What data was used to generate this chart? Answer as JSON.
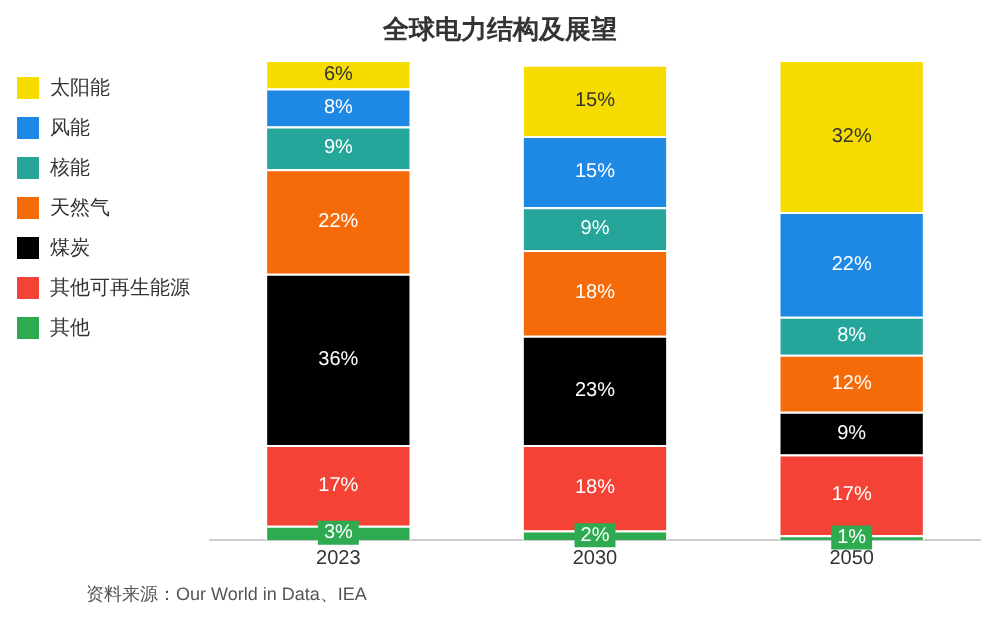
{
  "chart_data": {
    "type": "bar",
    "title": "全球电力结构及展望",
    "categories": [
      "2023",
      "2030",
      "2050"
    ],
    "stacked": true,
    "legend": "left",
    "grid": false,
    "series": [
      {
        "name": "其他",
        "color": "#2eaa50",
        "values": [
          3,
          2,
          1
        ],
        "value_labels": [
          "3%",
          "2%",
          "1%"
        ]
      },
      {
        "name": "其他可再生能源",
        "color": "#f44336",
        "values": [
          17,
          18,
          17
        ],
        "value_labels": [
          "17%",
          "18%",
          "17%"
        ]
      },
      {
        "name": "煤炭",
        "color": "#000000",
        "values": [
          36,
          23,
          9
        ],
        "value_labels": [
          "36%",
          "23%",
          "9%"
        ]
      },
      {
        "name": "天然气",
        "color": "#f56b0a",
        "values": [
          22,
          18,
          12
        ],
        "value_labels": [
          "22%",
          "18%",
          "12%"
        ]
      },
      {
        "name": "核能",
        "color": "#26a69a",
        "values": [
          9,
          9,
          8
        ],
        "value_labels": [
          "9%",
          "9%",
          "8%"
        ]
      },
      {
        "name": "风能",
        "color": "#1e88e5",
        "values": [
          8,
          15,
          22
        ],
        "value_labels": [
          "8%",
          "15%",
          "22%"
        ]
      },
      {
        "name": "太阳能",
        "color": "#f7dc00",
        "values": [
          6,
          15,
          32
        ],
        "value_labels": [
          "6%",
          "15%",
          "32%"
        ]
      }
    ],
    "annotations": [
      "资料来源：Our World in Data、IEA"
    ]
  }
}
